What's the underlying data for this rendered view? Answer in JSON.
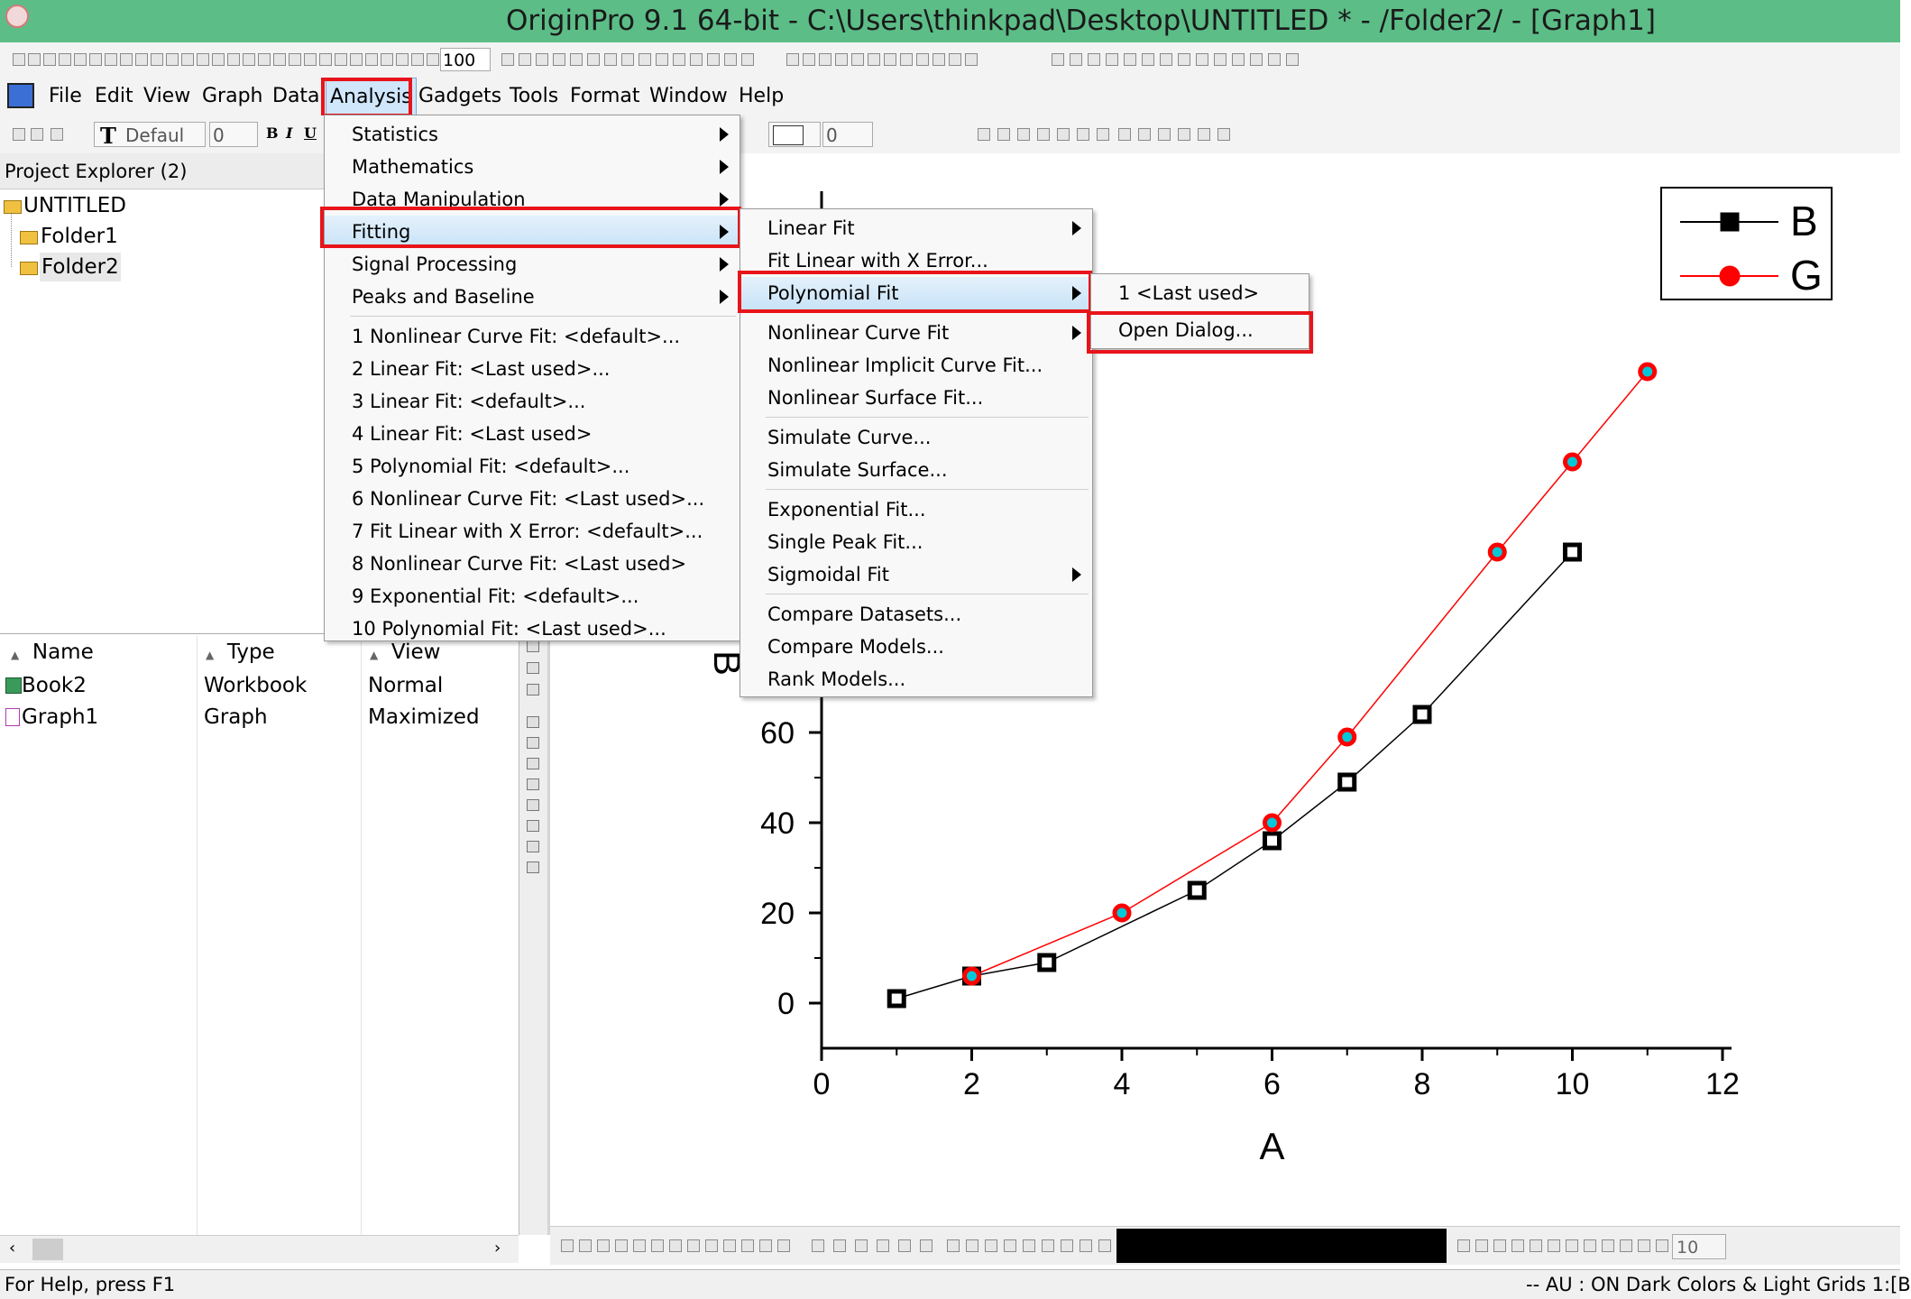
{
  "titlebar": {
    "title": "OriginPro 9.1 64-bit - C:\\Users\\thinkpad\\Desktop\\UNTITLED * - /Folder2/ - [Graph1]"
  },
  "toolbar": {
    "zoom_value": "100",
    "font_name": "Defaul",
    "font_size": "0",
    "line_width": "0"
  },
  "menubar": {
    "items": [
      "File",
      "Edit",
      "View",
      "Graph",
      "Data",
      "Analysis",
      "Gadgets",
      "Tools",
      "Format",
      "Window",
      "Help"
    ]
  },
  "project_explorer": {
    "title": "Project Explorer (2)",
    "tree": [
      "UNTITLED",
      "Folder1",
      "Folder2"
    ]
  },
  "list": {
    "headers": [
      "Name",
      "Type",
      "View"
    ],
    "rows": [
      {
        "name": "Book2",
        "type": "Workbook",
        "view": "Normal"
      },
      {
        "name": "Graph1",
        "type": "Graph",
        "view": "Maximized"
      }
    ]
  },
  "analysis_menu": {
    "items": [
      "Statistics",
      "Mathematics",
      "Data Manipulation",
      "Fitting",
      "Signal Processing",
      "Peaks and Baseline"
    ],
    "recent": [
      "1 Nonlinear Curve Fit: <default>...",
      "2 Linear Fit: <Last used>...",
      "3 Linear Fit: <default>...",
      "4 Linear Fit: <Last used>",
      "5 Polynomial Fit: <default>...",
      "6 Nonlinear Curve Fit: <Last used>...",
      "7 Fit Linear with X Error: <default>...",
      "8 Nonlinear Curve Fit: <Last used>",
      "9 Exponential Fit: <default>...",
      "10 Polynomial Fit: <Last used>..."
    ]
  },
  "fitting_menu": {
    "group1": [
      "Linear Fit",
      "Fit Linear with X Error...",
      "Polynomial Fit",
      "Nonlinear Curve Fit",
      "Nonlinear Implicit Curve Fit...",
      "Nonlinear Surface Fit..."
    ],
    "group2": [
      "Simulate Curve...",
      "Simulate Surface..."
    ],
    "group3": [
      "Exponential Fit...",
      "Single Peak Fit...",
      "Sigmoidal Fit"
    ],
    "group4": [
      "Compare Datasets...",
      "Compare Models...",
      "Rank Models..."
    ]
  },
  "polynomial_menu": {
    "items": [
      "1 <Last used>",
      "Open Dialog..."
    ]
  },
  "bottom_toolbar": {
    "size_value": "10"
  },
  "statusbar": {
    "left": "For Help, press F1",
    "right": "-- AU : ON Dark Colors & Light Grids 1:[B"
  },
  "colors": {
    "titlebar": "#5cbd87",
    "highlight": "#e8141a",
    "series_G": "#ff0000",
    "series_B": "#000000",
    "marker_fill_G": "#00c8d8"
  },
  "chart_data": {
    "type": "scatter",
    "xlabel": "A",
    "ylabel": "B",
    "xlim": [
      0,
      12
    ],
    "ylim": [
      -10,
      180
    ],
    "xticks": [
      "0",
      "2",
      "4",
      "6",
      "8",
      "10",
      "12"
    ],
    "yticks": [
      "0",
      "20",
      "40",
      "60"
    ],
    "legend_position": "top-right",
    "series": [
      {
        "name": "B",
        "x": [
          1,
          2,
          3,
          5,
          6,
          7,
          8,
          10
        ],
        "y": [
          1,
          6,
          9,
          25,
          36,
          49,
          64,
          100
        ]
      },
      {
        "name": "G",
        "x": [
          2,
          4,
          6,
          7,
          9,
          10,
          11
        ],
        "y": [
          6,
          20,
          40,
          59,
          100,
          120,
          140
        ]
      }
    ]
  }
}
